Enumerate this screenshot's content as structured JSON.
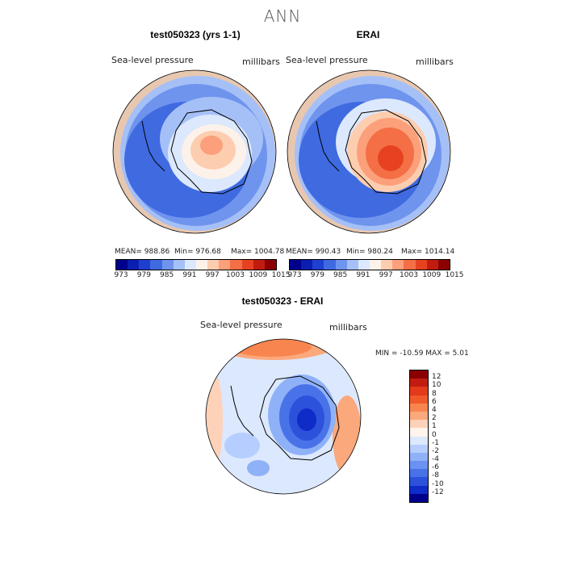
{
  "title": "ANN",
  "panels": [
    {
      "title": "test050323 (yrs 1-1)",
      "variable": "Sea-level pressure",
      "units": "millibars",
      "stats": {
        "mean": "MEAN= 988.86",
        "min": "Min= 976.68",
        "max": "Max= 1004.78"
      }
    },
    {
      "title": "ERAI",
      "variable": "Sea-level pressure",
      "units": "millibars",
      "stats": {
        "mean": "MEAN= 990.43",
        "min": "Min= 980.24",
        "max": "Max= 1014.14"
      }
    },
    {
      "title": "test050323 - ERAI",
      "variable": "Sea-level pressure",
      "units": "millibars",
      "stats_line": "MIN = -10.59  MAX =    5.01"
    }
  ],
  "abs_colorbar": {
    "colors": [
      "#00008b",
      "#0a1fb0",
      "#1f3fd0",
      "#3f6ae0",
      "#6f94ee",
      "#a5c0f7",
      "#dce8fd",
      "#fdf2ea",
      "#fdcdb0",
      "#fba07a",
      "#f46f45",
      "#e64221",
      "#c01d10",
      "#8b0000"
    ],
    "tick_labels": [
      "973",
      "979",
      "985",
      "991",
      "997",
      "1003",
      "1009",
      "1015"
    ]
  },
  "diff_colorbar": {
    "colors": [
      "#8b0000",
      "#c01d10",
      "#e23a1a",
      "#f05a2a",
      "#f88550",
      "#fba87c",
      "#fdd2b8",
      "#fff4ec",
      "#dce8fd",
      "#b5ceff",
      "#8fb1f7",
      "#6a92f2",
      "#4a72e8",
      "#2c52dc",
      "#0f2bc8",
      "#00008b"
    ],
    "tick_labels": [
      "12",
      "10",
      "8",
      "6",
      "4",
      "2",
      "1",
      "0",
      "-1",
      "-2",
      "-4",
      "-6",
      "-8",
      "-10",
      "-12"
    ]
  }
}
